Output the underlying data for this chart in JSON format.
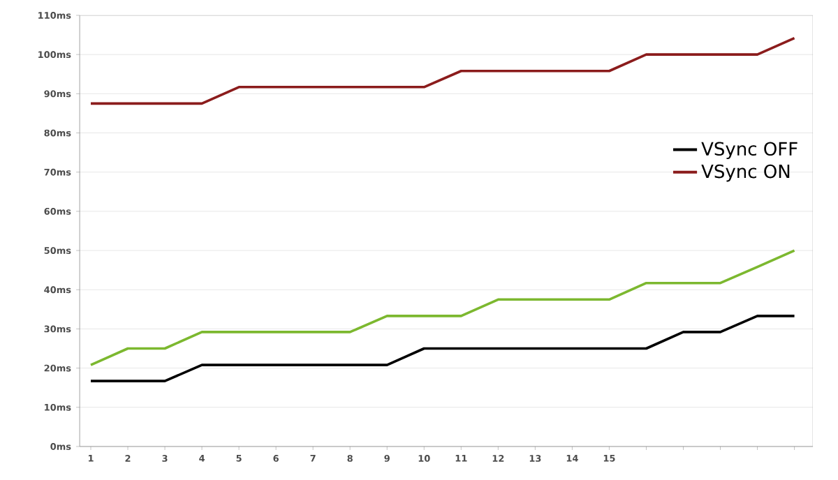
{
  "chart_data": {
    "type": "line",
    "categories": [
      "1",
      "2",
      "3",
      "4",
      "5",
      "6",
      "7",
      "8",
      "9",
      "10",
      "11",
      "12",
      "13",
      "14",
      "15",
      null,
      null,
      null,
      null,
      null
    ],
    "series": [
      {
        "color": "#7cb82f",
        "values": [
          20.8,
          25,
          25,
          29.2,
          29.2,
          29.2,
          29.2,
          29.2,
          33.3,
          33.3,
          33.3,
          37.5,
          37.5,
          37.5,
          37.5,
          41.7,
          41.7,
          41.7,
          45.8,
          50
        ]
      },
      {
        "name": "VSync OFF",
        "color": "#000000",
        "values": [
          16.7,
          16.7,
          16.7,
          20.8,
          20.8,
          20.8,
          20.8,
          20.8,
          20.8,
          25,
          25,
          25,
          25,
          25,
          25,
          25,
          29.2,
          29.2,
          33.3,
          33.3
        ]
      },
      {
        "name": "VSync ON",
        "color": "#8b1c1c",
        "values": [
          87.5,
          87.5,
          87.5,
          87.5,
          91.7,
          91.7,
          91.7,
          91.7,
          91.7,
          91.7,
          95.8,
          95.8,
          95.8,
          95.8,
          95.8,
          100,
          100,
          100,
          100,
          104.2
        ]
      }
    ],
    "ylim": [
      0,
      110
    ],
    "yticks": [
      {
        "value": 0,
        "label": "0ms"
      },
      {
        "value": 10,
        "label": "10ms"
      },
      {
        "value": 20,
        "label": "20ms"
      },
      {
        "value": 30,
        "label": "30ms"
      },
      {
        "value": 40,
        "label": "40ms"
      },
      {
        "value": 50,
        "label": "50ms"
      },
      {
        "value": 60,
        "label": "60ms"
      },
      {
        "value": 70,
        "label": "70ms"
      },
      {
        "value": 80,
        "label": "80ms"
      },
      {
        "value": 90,
        "label": "90ms"
      },
      {
        "value": 100,
        "label": "100ms"
      },
      {
        "value": 110,
        "label": "110ms"
      }
    ],
    "grid": "y",
    "legend": "right",
    "marker": "none",
    "line_style": "solid"
  }
}
